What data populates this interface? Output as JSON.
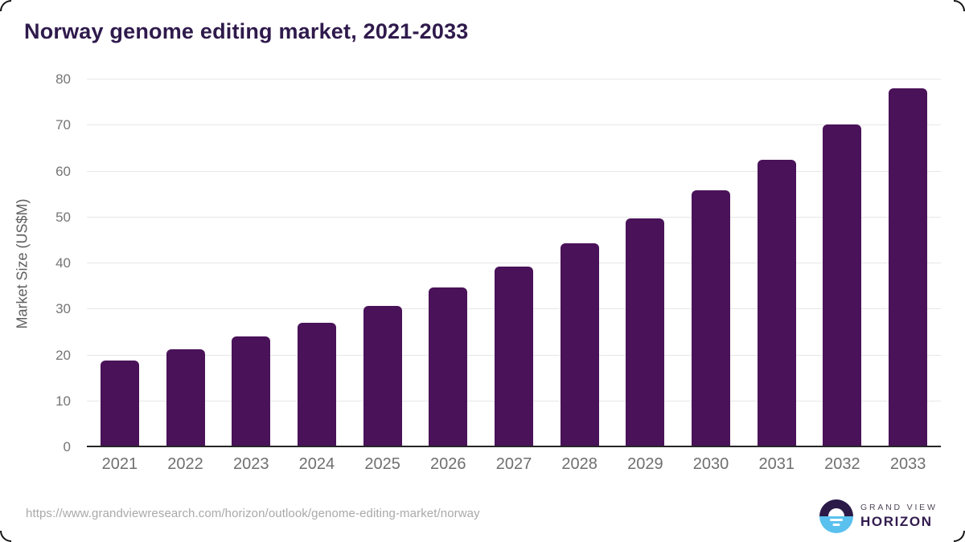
{
  "page": {
    "source_url": "https://www.grandviewresearch.com/horizon/outlook/genome-editing-market/norway"
  },
  "branding": {
    "name_top": "GRAND VIEW",
    "name_bottom": "HORIZON",
    "logo_colors": {
      "top_half": "#2b1a48",
      "bottom_half": "#5ac1ee",
      "glyph": "#ffffff"
    }
  },
  "chart_data": {
    "type": "bar",
    "title": "Norway genome editing market, 2021-2033",
    "categories": [
      "2021",
      "2022",
      "2023",
      "2024",
      "2025",
      "2026",
      "2027",
      "2028",
      "2029",
      "2030",
      "2031",
      "2032",
      "2033"
    ],
    "values": [
      18.5,
      21.0,
      23.8,
      26.8,
      30.4,
      34.4,
      38.9,
      44.0,
      49.5,
      55.6,
      62.2,
      69.8,
      77.7
    ],
    "xlabel": "",
    "ylabel": "Market Size (US$M)",
    "ylim": [
      0,
      80
    ],
    "yticks": [
      0,
      10,
      20,
      30,
      40,
      50,
      60,
      70,
      80
    ],
    "grid": true,
    "legend_position": "none",
    "bar_color": "#4a1259",
    "gridline_color": "#e7e7e7",
    "axis_line_color": "#262626",
    "title_color": "#2f1a4c"
  }
}
